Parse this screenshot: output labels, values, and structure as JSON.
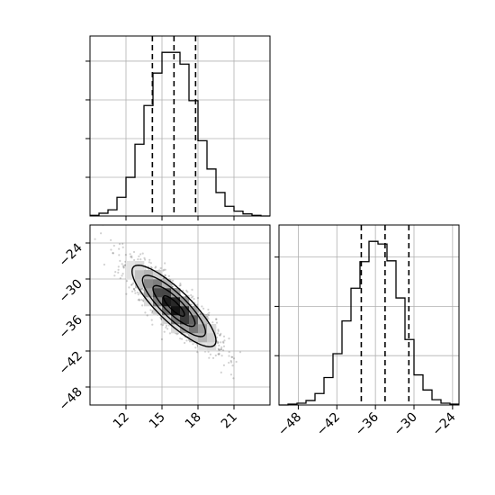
{
  "chart_data": [
    {
      "type": "histogram",
      "panel": "top-left",
      "variable": "x",
      "xlim": [
        9,
        24
      ],
      "bin_edges": [
        9.0,
        9.75,
        10.5,
        11.25,
        12.0,
        12.75,
        13.5,
        14.25,
        15.0,
        15.75,
        16.5,
        17.25,
        18.0,
        18.75,
        19.5,
        20.25,
        21.0,
        21.75,
        22.5,
        23.25,
        24.0
      ],
      "counts": [
        1,
        4,
        9,
        27,
        56,
        104,
        160,
        207,
        237,
        237,
        220,
        167,
        109,
        68,
        34,
        14,
        7,
        3,
        1,
        0
      ],
      "y_ticks_unlabeled": 4,
      "grid": true,
      "quantiles": [
        14.2,
        16.0,
        17.8
      ]
    },
    {
      "type": "histogram",
      "panel": "bottom-right",
      "variable": "y",
      "xlim": [
        -51,
        -23
      ],
      "xticks": [
        -48,
        -42,
        -36,
        -30,
        -24
      ],
      "xtick_labels": [
        "−48",
        "−42",
        "−36",
        "−30",
        "−24"
      ],
      "bin_edges": [
        -51.0,
        -49.6,
        -48.2,
        -46.8,
        -45.4,
        -44.0,
        -42.6,
        -41.2,
        -39.8,
        -38.4,
        -37.0,
        -35.6,
        -34.2,
        -32.8,
        -31.4,
        -30.0,
        -28.6,
        -27.2,
        -25.8,
        -24.4,
        -23.0
      ],
      "counts": [
        0,
        1,
        2,
        5,
        13,
        31,
        58,
        95,
        132,
        162,
        185,
        182,
        163,
        121,
        74,
        34,
        17,
        6,
        2,
        1
      ],
      "y_ticks_unlabeled": 3,
      "grid": true,
      "quantiles": [
        -38.2,
        -34.5,
        -30.8
      ]
    },
    {
      "type": "2d-histogram-contour",
      "panel": "bottom-left",
      "xlim": [
        9,
        24
      ],
      "ylim": [
        -51,
        -21
      ],
      "xticks": [
        12,
        15,
        18,
        21
      ],
      "xtick_labels": [
        "12",
        "15",
        "18",
        "21"
      ],
      "yticks": [
        -48,
        -42,
        -36,
        -30,
        -24
      ],
      "ytick_labels": [
        "−48",
        "−42",
        "−36",
        "−30",
        "−24"
      ],
      "grid": true,
      "samples": 2000,
      "mean": [
        16.0,
        -34.5
      ],
      "std": [
        1.75,
        3.4
      ],
      "correlation": -0.85,
      "contour_levels": [
        "0.5 sigma",
        "1 sigma",
        "1.5 sigma",
        "2 sigma"
      ],
      "colormap": "greys"
    }
  ]
}
